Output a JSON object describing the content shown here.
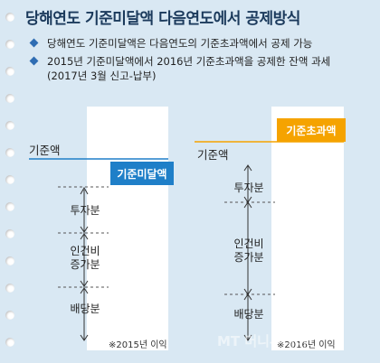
{
  "title": "당해연도 기준미달액 다음연도에서 공제방식",
  "bullets": [
    "당해연도 기준미달액은 다음연도의 기준초과액에서 공제 가능",
    "2015년 기준미달액에서 2016년 기준초과액을 공제한 잔액 과세",
    "(2017년 3월 신고-납부)"
  ],
  "left_panel": {
    "base_label": "기준액",
    "box_label": "기준미달액",
    "box_color": "#1f7fc8",
    "segments": [
      "투자분",
      "인건비\n증가분",
      "배당분"
    ],
    "note": "※2015년 이익"
  },
  "right_panel": {
    "base_label": "기준액",
    "box_label": "기준초과액",
    "box_color": "#f5a300",
    "segments": [
      "투자분",
      "인건비\n증가분",
      "배당분"
    ],
    "note": "※2016년 이익"
  },
  "watermark": "MT 머니투데이"
}
